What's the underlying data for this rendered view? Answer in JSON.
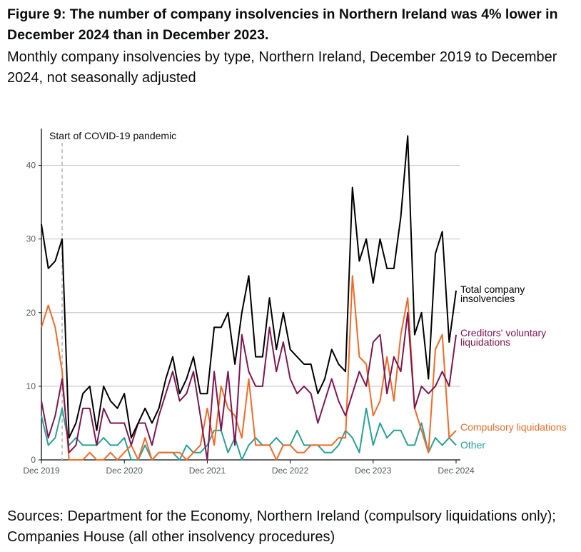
{
  "title": "Figure 9: The number of company insolvencies in Northern Ireland was 4% lower in December 2024 than in December 2023.",
  "subtitle": "Monthly company insolvencies by type, Northern Ireland, December 2019 to December 2024, not seasonally adjusted",
  "source": "Sources: Department for the Economy, Northern Ireland (compulsory liquidations only); Companies House (all other insolvency procedures)",
  "chart_data": {
    "type": "line",
    "title": "",
    "xlabel": "",
    "ylabel": "",
    "x_range": [
      "Dec 2019",
      "Dec 2024"
    ],
    "x_ticks": [
      "Dec 2019",
      "Dec 2020",
      "Dec 2021",
      "Dec 2022",
      "Dec 2023",
      "Dec 2024"
    ],
    "y_ticks": [
      0,
      10,
      20,
      30,
      40
    ],
    "ylim": [
      0,
      45
    ],
    "grid": true,
    "legend": "direct labels at line ends (right)",
    "annotation": "Start of COVID-19 pandemic",
    "annotation_x": "Mar 2020",
    "series": [
      {
        "name": "Total company insolvencies",
        "label_lines": [
          "Total company",
          "insolvencies"
        ],
        "color": "#000000",
        "values": [
          32,
          26,
          27,
          30,
          3,
          5,
          9,
          10,
          4,
          10,
          8,
          7,
          9,
          3,
          5,
          7,
          5,
          7,
          11,
          14,
          9,
          11,
          14,
          9,
          9,
          18,
          18,
          20,
          13,
          20,
          25,
          14,
          14,
          22,
          15,
          20,
          15,
          14,
          13,
          13,
          9,
          11,
          15,
          13,
          12,
          37,
          27,
          30,
          24,
          30,
          26,
          26,
          33,
          44,
          17,
          20,
          11,
          28,
          31,
          16,
          23
        ]
      },
      {
        "name": "Creditors' voluntary liquidations",
        "label_lines": [
          "Creditors' voluntary",
          "liquidations"
        ],
        "color": "#801650",
        "values": [
          8,
          3,
          6,
          11,
          1,
          2,
          7,
          7,
          2,
          7,
          5,
          5,
          5,
          2,
          5,
          5,
          2,
          6,
          9,
          12,
          8,
          9,
          12,
          6,
          0,
          12,
          4,
          12,
          2,
          17,
          12,
          10,
          10,
          18,
          12,
          16,
          11,
          9,
          10,
          9,
          5,
          8,
          11,
          8,
          6,
          9,
          12,
          10,
          16,
          17,
          9,
          14,
          12,
          20,
          7,
          10,
          9,
          10,
          12,
          10,
          17
        ]
      },
      {
        "name": "Compulsory liquidations",
        "label_lines": [
          "Compulsory liquidations"
        ],
        "color": "#f46a25",
        "values": [
          18,
          21,
          18,
          12,
          0,
          0,
          0,
          1,
          0,
          0,
          1,
          0,
          1,
          2,
          0,
          3,
          0,
          1,
          1,
          1,
          1,
          0,
          1,
          2,
          7,
          2,
          10,
          7,
          6,
          3,
          11,
          2,
          2,
          2,
          0,
          2,
          2,
          1,
          1,
          2,
          2,
          2,
          2,
          3,
          3,
          25,
          14,
          13,
          6,
          8,
          14,
          8,
          17,
          22,
          7,
          4,
          1,
          15,
          17,
          3,
          4
        ]
      },
      {
        "name": "Other",
        "label_lines": [
          "Other"
        ],
        "color": "#28a197",
        "values": [
          6,
          2,
          3,
          7,
          2,
          3,
          2,
          2,
          2,
          3,
          2,
          2,
          3,
          0,
          0,
          2,
          0,
          1,
          1,
          1,
          0,
          2,
          1,
          1,
          2,
          4,
          4,
          1,
          3,
          0,
          2,
          3,
          2,
          2,
          3,
          2,
          2,
          4,
          2,
          2,
          2,
          1,
          1,
          2,
          4,
          3,
          1,
          7,
          2,
          5,
          3,
          4,
          4,
          2,
          2,
          5,
          1,
          3,
          2,
          3,
          2
        ]
      }
    ]
  }
}
